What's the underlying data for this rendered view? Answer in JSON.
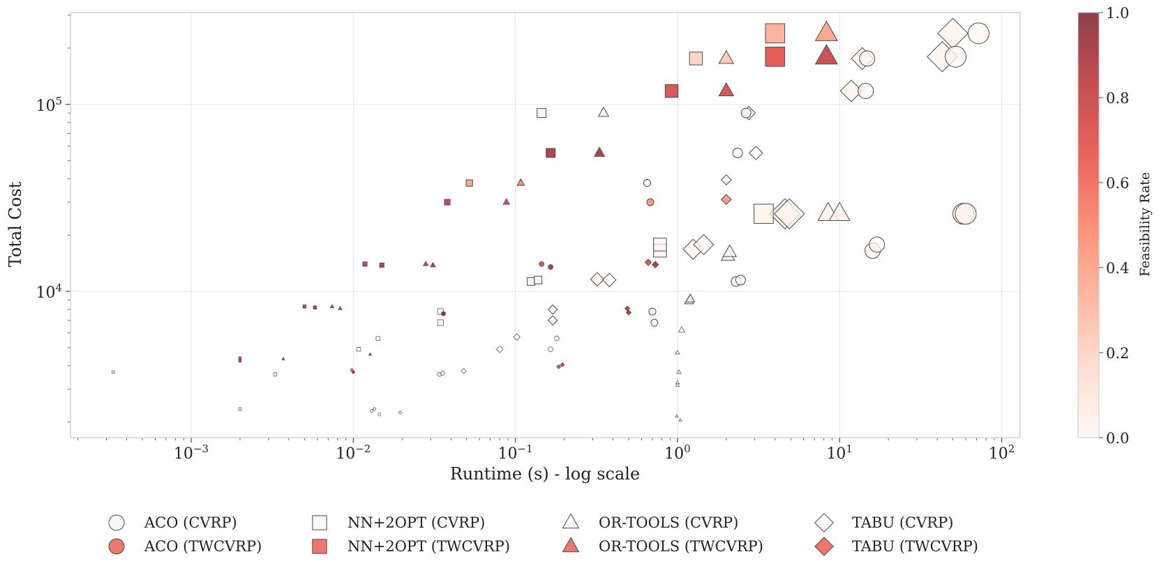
{
  "chart_data": {
    "type": "scatter",
    "title": "",
    "xlabel": "Runtime (s) - log scale",
    "ylabel": "Total Cost",
    "xscale": "log",
    "yscale": "log",
    "xlim": [
      0.00018,
      130
    ],
    "ylim": [
      1650,
      310000
    ],
    "grid": true,
    "x_ticks": [
      {
        "value": 0.001,
        "base": "10",
        "exp": "−3"
      },
      {
        "value": 0.01,
        "base": "10",
        "exp": "−2"
      },
      {
        "value": 0.1,
        "base": "10",
        "exp": "−1"
      },
      {
        "value": 1,
        "base": "10",
        "exp": "0"
      },
      {
        "value": 10,
        "base": "10",
        "exp": "1"
      },
      {
        "value": 100,
        "base": "10",
        "exp": "2"
      }
    ],
    "y_ticks": [
      {
        "value": 10000,
        "base": "10",
        "exp": "4"
      },
      {
        "value": 100000,
        "base": "10",
        "exp": "5"
      }
    ],
    "colorbar": {
      "label": "Feasibility Rate",
      "range": [
        0,
        1
      ],
      "ticks": [
        "0.0",
        "0.2",
        "0.4",
        "0.6",
        "0.8",
        "1.0"
      ],
      "colors": [
        "#fff5f0",
        "#fdd4c2",
        "#fca082",
        "#fb6b4b",
        "#e32f27",
        "#b11218",
        "#67000d"
      ]
    },
    "legend": {
      "position": "bottom",
      "entries": [
        {
          "label": "ACO (CVRP)",
          "marker": "circle",
          "problem": "CVRP"
        },
        {
          "label": "ACO (TWCVRP)",
          "marker": "circle",
          "problem": "TWCVRP"
        },
        {
          "label": "NN+2OPT (CVRP)",
          "marker": "square",
          "problem": "CVRP"
        },
        {
          "label": "NN+2OPT (TWCVRP)",
          "marker": "square",
          "problem": "TWCVRP"
        },
        {
          "label": "OR-TOOLS (CVRP)",
          "marker": "triangle",
          "problem": "CVRP"
        },
        {
          "label": "OR-TOOLS (TWCVRP)",
          "marker": "triangle",
          "problem": "TWCVRP"
        },
        {
          "label": "TABU (CVRP)",
          "marker": "diamond",
          "problem": "CVRP"
        },
        {
          "label": "TABU (TWCVRP)",
          "marker": "diamond",
          "problem": "TWCVRP"
        }
      ]
    },
    "series": [
      {
        "name": "ACO (CVRP)",
        "marker": "circle",
        "points": [
          {
            "x": 0.013,
            "y": 2300,
            "s": 2,
            "f": 0.0
          },
          {
            "x": 0.0145,
            "y": 2200,
            "s": 2,
            "f": 0.0
          },
          {
            "x": 0.034,
            "y": 3600,
            "s": 3,
            "f": 0.0
          },
          {
            "x": 0.165,
            "y": 4900,
            "s": 3.5,
            "f": 0.0
          },
          {
            "x": 0.18,
            "y": 5600,
            "s": 3.5,
            "f": 0.0
          },
          {
            "x": 0.7,
            "y": 7800,
            "s": 5,
            "f": 0.0
          },
          {
            "x": 0.72,
            "y": 6800,
            "s": 5,
            "f": 0.0
          },
          {
            "x": 2.3,
            "y": 11300,
            "s": 7,
            "f": 0.0
          },
          {
            "x": 2.45,
            "y": 11500,
            "s": 7,
            "f": 0.0
          },
          {
            "x": 16,
            "y": 16500,
            "s": 11,
            "f": 0.0
          },
          {
            "x": 17,
            "y": 17800,
            "s": 11,
            "f": 0.0
          },
          {
            "x": 58,
            "y": 26000,
            "s": 15,
            "f": 0.02
          },
          {
            "x": 60,
            "y": 26000,
            "s": 15,
            "f": 0.02
          },
          {
            "x": 0.65,
            "y": 38000,
            "s": 5,
            "f": 0.0
          },
          {
            "x": 2.35,
            "y": 55000,
            "s": 7,
            "f": 0.0
          },
          {
            "x": 2.65,
            "y": 90000,
            "s": 7,
            "f": 0.0
          },
          {
            "x": 14.5,
            "y": 118000,
            "s": 11,
            "f": 0.0
          },
          {
            "x": 14.8,
            "y": 176000,
            "s": 11,
            "f": 0.0
          },
          {
            "x": 52,
            "y": 180000,
            "s": 15,
            "f": 0.0
          },
          {
            "x": 72,
            "y": 240000,
            "s": 15,
            "f": 0.0
          }
        ]
      },
      {
        "name": "ACO (TWCVRP)",
        "marker": "circle",
        "problem": "TWCVRP",
        "points": [
          {
            "x": 0.0098,
            "y": 3800,
            "s": 2,
            "f": 0.55
          },
          {
            "x": 0.01,
            "y": 3700,
            "s": 2,
            "f": 0.9
          },
          {
            "x": 0.036,
            "y": 7600,
            "s": 3,
            "f": 1.0
          },
          {
            "x": 0.145,
            "y": 14000,
            "s": 3.5,
            "f": 0.75
          },
          {
            "x": 0.165,
            "y": 13500,
            "s": 3.5,
            "f": 0.95
          },
          {
            "x": 0.68,
            "y": 30000,
            "s": 5,
            "f": 0.45
          }
        ]
      },
      {
        "name": "NN+2OPT (CVRP)",
        "marker": "square",
        "points": [
          {
            "x": 0.00033,
            "y": 3700,
            "s": 2,
            "f": 0.0
          },
          {
            "x": 0.002,
            "y": 2350,
            "s": 2,
            "f": 0.0
          },
          {
            "x": 0.0033,
            "y": 3600,
            "s": 2.5,
            "f": 0.0
          },
          {
            "x": 0.0108,
            "y": 4900,
            "s": 3,
            "f": 0.0
          },
          {
            "x": 0.0142,
            "y": 5600,
            "s": 3,
            "f": 0.0
          },
          {
            "x": 0.0345,
            "y": 7800,
            "s": 4.5,
            "f": 0.0
          },
          {
            "x": 0.0345,
            "y": 6800,
            "s": 4.5,
            "f": 0.0
          },
          {
            "x": 0.125,
            "y": 11300,
            "s": 6,
            "f": 0.0
          },
          {
            "x": 0.138,
            "y": 11500,
            "s": 6,
            "f": 0.0
          },
          {
            "x": 0.145,
            "y": 90000,
            "s": 7,
            "f": 0.0
          },
          {
            "x": 0.78,
            "y": 16500,
            "s": 10,
            "f": 0.0
          },
          {
            "x": 0.78,
            "y": 17800,
            "s": 10,
            "f": 0.0
          },
          {
            "x": 3.4,
            "y": 26000,
            "s": 15,
            "f": 0.02
          }
        ]
      },
      {
        "name": "NN+2OPT (TWCVRP)",
        "marker": "square",
        "problem": "TWCVRP",
        "points": [
          {
            "x": 0.002,
            "y": 4400,
            "s": 2,
            "f": 0.8
          },
          {
            "x": 0.002,
            "y": 4250,
            "s": 2,
            "f": 0.85
          },
          {
            "x": 0.005,
            "y": 8300,
            "s": 2.5,
            "f": 0.9
          },
          {
            "x": 0.0058,
            "y": 8200,
            "s": 2.5,
            "f": 0.95
          },
          {
            "x": 0.0118,
            "y": 14000,
            "s": 3.5,
            "f": 0.85
          },
          {
            "x": 0.015,
            "y": 13800,
            "s": 3.5,
            "f": 0.9
          },
          {
            "x": 0.038,
            "y": 30000,
            "s": 4.5,
            "f": 0.85
          },
          {
            "x": 0.052,
            "y": 38000,
            "s": 5,
            "f": 0.4
          },
          {
            "x": 0.165,
            "y": 55000,
            "s": 7,
            "f": 0.9
          },
          {
            "x": 0.92,
            "y": 118000,
            "s": 10,
            "f": 0.75
          },
          {
            "x": 1.3,
            "y": 176000,
            "s": 10,
            "f": 0.2
          },
          {
            "x": 4.0,
            "y": 180000,
            "s": 15,
            "f": 0.7
          },
          {
            "x": 4.0,
            "y": 240000,
            "s": 15,
            "f": 0.35
          }
        ]
      },
      {
        "name": "OR-TOOLS (CVRP)",
        "marker": "triangle",
        "points": [
          {
            "x": 0.99,
            "y": 2150,
            "s": 2,
            "f": 0.0
          },
          {
            "x": 1.04,
            "y": 2050,
            "s": 2,
            "f": 0.0
          },
          {
            "x": 1.0,
            "y": 3150,
            "s": 2.5,
            "f": 0.0
          },
          {
            "x": 1.0,
            "y": 3250,
            "s": 2.5,
            "f": 0.0
          },
          {
            "x": 1.02,
            "y": 3700,
            "s": 3,
            "f": 0.0
          },
          {
            "x": 1.0,
            "y": 4700,
            "s": 3,
            "f": 0.0
          },
          {
            "x": 1.06,
            "y": 6200,
            "s": 4.5,
            "f": 0.0
          },
          {
            "x": 1.18,
            "y": 8900,
            "s": 6,
            "f": 0.0
          },
          {
            "x": 1.2,
            "y": 9100,
            "s": 6,
            "f": 0.0
          },
          {
            "x": 2.05,
            "y": 15500,
            "s": 9,
            "f": 0.0
          },
          {
            "x": 2.1,
            "y": 16200,
            "s": 9,
            "f": 0.0
          },
          {
            "x": 8.5,
            "y": 26000,
            "s": 14,
            "f": 0.02
          },
          {
            "x": 10.0,
            "y": 26000,
            "s": 14,
            "f": 0.02
          },
          {
            "x": 0.35,
            "y": 90000,
            "s": 7,
            "f": 0.0
          }
        ]
      },
      {
        "name": "OR-TOOLS (TWCVRP)",
        "marker": "triangle",
        "problem": "TWCVRP",
        "points": [
          {
            "x": 0.0037,
            "y": 4350,
            "s": 2,
            "f": 0.9
          },
          {
            "x": 0.0074,
            "y": 8300,
            "s": 2.5,
            "f": 0.85
          },
          {
            "x": 0.0083,
            "y": 8100,
            "s": 2.5,
            "f": 0.9
          },
          {
            "x": 0.0127,
            "y": 4600,
            "s": 2,
            "f": 0.9
          },
          {
            "x": 0.028,
            "y": 14000,
            "s": 3.5,
            "f": 0.85
          },
          {
            "x": 0.031,
            "y": 13800,
            "s": 3.5,
            "f": 0.9
          },
          {
            "x": 0.088,
            "y": 30000,
            "s": 4.5,
            "f": 0.8
          },
          {
            "x": 0.108,
            "y": 38000,
            "s": 5,
            "f": 0.5
          },
          {
            "x": 0.33,
            "y": 55000,
            "s": 7,
            "f": 0.9
          },
          {
            "x": 2.0,
            "y": 118000,
            "s": 10,
            "f": 0.75
          },
          {
            "x": 2.0,
            "y": 176000,
            "s": 10,
            "f": 0.25
          },
          {
            "x": 8.3,
            "y": 180000,
            "s": 15,
            "f": 0.8
          },
          {
            "x": 8.3,
            "y": 240000,
            "s": 15,
            "f": 0.4
          }
        ]
      },
      {
        "name": "TABU (CVRP)",
        "marker": "diamond",
        "points": [
          {
            "x": 0.0135,
            "y": 2350,
            "s": 2,
            "f": 0.0
          },
          {
            "x": 0.0195,
            "y": 2250,
            "s": 2,
            "f": 0.0
          },
          {
            "x": 0.0355,
            "y": 3650,
            "s": 3,
            "f": 0.0
          },
          {
            "x": 0.048,
            "y": 3750,
            "s": 3,
            "f": 0.0
          },
          {
            "x": 0.08,
            "y": 4900,
            "s": 4,
            "f": 0.0
          },
          {
            "x": 0.102,
            "y": 5700,
            "s": 4,
            "f": 0.0
          },
          {
            "x": 0.17,
            "y": 8000,
            "s": 5.5,
            "f": 0.0
          },
          {
            "x": 0.17,
            "y": 7000,
            "s": 5.5,
            "f": 0.0
          },
          {
            "x": 0.32,
            "y": 11600,
            "s": 8,
            "f": 0.0
          },
          {
            "x": 0.38,
            "y": 11500,
            "s": 8,
            "f": 0.0
          },
          {
            "x": 1.25,
            "y": 16800,
            "s": 12,
            "f": 0.0
          },
          {
            "x": 1.45,
            "y": 17800,
            "s": 12,
            "f": 0.0
          },
          {
            "x": 4.6,
            "y": 26000,
            "s": 18,
            "f": 0.02
          },
          {
            "x": 4.9,
            "y": 26000,
            "s": 18,
            "f": 0.02
          },
          {
            "x": 2.0,
            "y": 39500,
            "s": 6,
            "f": 0.0
          },
          {
            "x": 3.05,
            "y": 55000,
            "s": 8,
            "f": 0.0
          },
          {
            "x": 2.75,
            "y": 90000,
            "s": 8,
            "f": 0.0
          },
          {
            "x": 11.8,
            "y": 118000,
            "s": 13,
            "f": 0.02
          },
          {
            "x": 13.8,
            "y": 176000,
            "s": 13,
            "f": 0.02
          },
          {
            "x": 43,
            "y": 180000,
            "s": 18,
            "f": 0.02
          },
          {
            "x": 50,
            "y": 240000,
            "s": 18,
            "f": 0.02
          }
        ]
      },
      {
        "name": "TABU (TWCVRP)",
        "marker": "diamond",
        "problem": "TWCVRP",
        "points": [
          {
            "x": 0.185,
            "y": 3950,
            "s": 2.5,
            "f": 0.75
          },
          {
            "x": 0.195,
            "y": 4050,
            "s": 2.5,
            "f": 0.8
          },
          {
            "x": 0.49,
            "y": 8100,
            "s": 3,
            "f": 0.85
          },
          {
            "x": 0.5,
            "y": 7700,
            "s": 3,
            "f": 0.9
          },
          {
            "x": 0.66,
            "y": 14300,
            "s": 4,
            "f": 0.75
          },
          {
            "x": 0.73,
            "y": 13900,
            "s": 4,
            "f": 0.95
          },
          {
            "x": 2.0,
            "y": 31000,
            "s": 6,
            "f": 0.45
          }
        ]
      }
    ]
  }
}
